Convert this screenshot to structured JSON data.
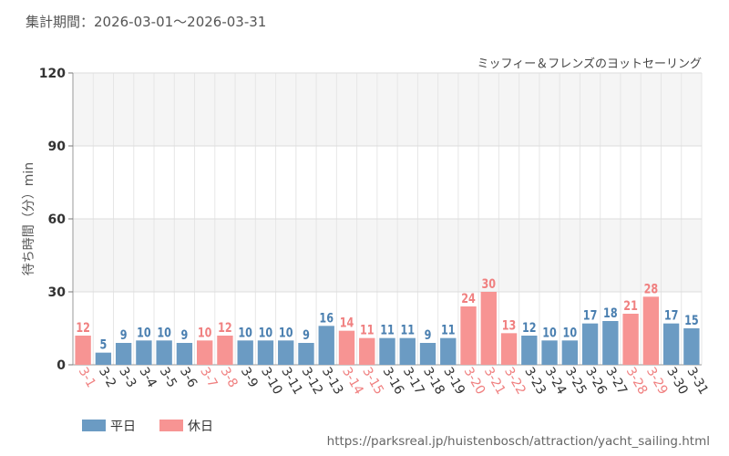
{
  "header": {
    "period": "集計期間：2026-03-01～2026-03-31"
  },
  "colors": {
    "weekday": "#6b9bc3",
    "holiday": "#f79493",
    "holiday_label": "#f08080",
    "grid_band": "#f5f5f5",
    "text": "#444444"
  },
  "footer": {
    "url": "https://parksreal.jp/huistenbosch/attraction/yacht_sailing.html"
  },
  "chart_data": {
    "type": "bar",
    "title": "ミッフィー＆フレンズのヨットセーリング",
    "ylabel": "待ち時間（分）min",
    "xlabel": "",
    "ylim": [
      0,
      120
    ],
    "yticks": [
      0,
      30,
      60,
      90,
      120
    ],
    "legend": {
      "placement": "bottom-left",
      "items": [
        {
          "name": "平日",
          "key": "weekday"
        },
        {
          "name": "休日",
          "key": "holiday"
        }
      ]
    },
    "categories": [
      "3-1",
      "3-2",
      "3-3",
      "3-4",
      "3-5",
      "3-6",
      "3-7",
      "3-8",
      "3-9",
      "3-10",
      "3-11",
      "3-12",
      "3-13",
      "3-14",
      "3-15",
      "3-16",
      "3-17",
      "3-18",
      "3-19",
      "3-20",
      "3-21",
      "3-22",
      "3-23",
      "3-24",
      "3-25",
      "3-26",
      "3-27",
      "3-28",
      "3-29",
      "3-30",
      "3-31"
    ],
    "values": [
      12,
      5,
      9,
      10,
      10,
      9,
      10,
      12,
      10,
      10,
      10,
      9,
      16,
      14,
      11,
      11,
      11,
      9,
      11,
      24,
      30,
      13,
      12,
      10,
      10,
      17,
      18,
      21,
      28,
      17,
      15
    ],
    "holiday": [
      true,
      false,
      false,
      false,
      false,
      false,
      true,
      true,
      false,
      false,
      false,
      false,
      false,
      true,
      true,
      false,
      false,
      false,
      false,
      true,
      true,
      true,
      false,
      false,
      false,
      false,
      false,
      true,
      true,
      false,
      false
    ]
  }
}
